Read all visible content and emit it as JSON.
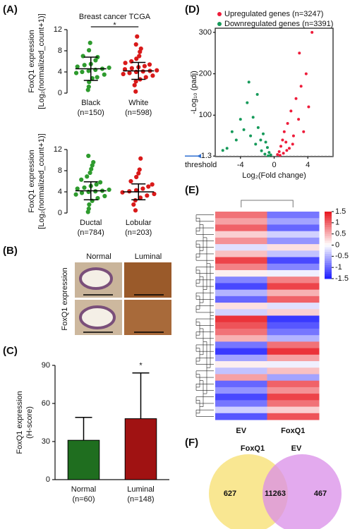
{
  "panel_labels": [
    "(A)",
    "(B)",
    "(C)",
    "(D)",
    "(E)",
    "(F)"
  ],
  "panel_b": {
    "columns": [
      "Normal",
      "Luminal"
    ],
    "row_label": "FoxQ1 expression"
  },
  "chart_data": [
    {
      "type": "strip",
      "title": "Breast cancer TCGA",
      "significance": "*",
      "ylabel": [
        "FoxQ1 expression",
        "[Log₂(normalized_count+1)]"
      ],
      "categories": [
        "Black",
        "White"
      ],
      "category_notes": [
        "(n=150)",
        "(n=598)"
      ],
      "ylim": [
        0,
        12
      ],
      "yticks": [
        0,
        4,
        8,
        12
      ],
      "series": [
        {
          "name": "Black",
          "color": "#2e9b2e",
          "mean": 4.6,
          "sd": 2.2,
          "values": [
            0.6,
            1.2,
            2.1,
            2.8,
            3.0,
            3.5,
            3.8,
            4.0,
            4.2,
            4.4,
            4.6,
            4.8,
            5.0,
            5.3,
            5.5,
            6.2,
            6.8,
            7.0,
            8.1,
            9.5
          ]
        },
        {
          "name": "White",
          "color": "#d91a1a",
          "mean": 4.2,
          "sd": 1.6,
          "values": [
            0.3,
            1.5,
            2.2,
            2.6,
            3.0,
            3.3,
            3.6,
            3.8,
            4.0,
            4.1,
            4.2,
            4.3,
            4.5,
            4.7,
            4.9,
            5.1,
            5.4,
            5.7,
            6.0,
            6.5,
            7.0,
            7.8,
            8.4,
            9.2,
            10.7
          ]
        }
      ]
    },
    {
      "type": "strip",
      "ylabel": [
        "FoxQ1 expression",
        "[Log₂(normalized_count+1)]"
      ],
      "categories": [
        "Ductal",
        "Lobular"
      ],
      "category_notes": [
        "(n=784)",
        "(n=203)"
      ],
      "ylim": [
        0,
        12
      ],
      "yticks": [
        0,
        4,
        8,
        12
      ],
      "series": [
        {
          "name": "Ductal",
          "color": "#2e9b2e",
          "mean": 4.2,
          "sd": 1.7,
          "values": [
            0.2,
            0.8,
            1.6,
            2.3,
            2.8,
            3.2,
            3.5,
            3.8,
            4.0,
            4.1,
            4.2,
            4.4,
            4.6,
            4.8,
            5.1,
            5.4,
            5.8,
            6.3,
            6.9,
            7.6,
            8.3,
            9.0,
            9.6,
            10.8
          ]
        },
        {
          "name": "Lobular",
          "color": "#d91a1a",
          "mean": 4.0,
          "sd": 1.5,
          "values": [
            0.5,
            1.6,
            2.4,
            2.9,
            3.3,
            3.6,
            3.9,
            4.1,
            4.3,
            4.6,
            5.0,
            5.4,
            6.0,
            6.8,
            7.5,
            8.2,
            10.3
          ]
        }
      ]
    },
    {
      "type": "bar",
      "significance": "*",
      "ylabel": [
        "FoxQ1 expression",
        "(H-score)"
      ],
      "categories": [
        "Normal",
        "Luminal"
      ],
      "category_notes": [
        "(n=60)",
        "(n=148)"
      ],
      "values": [
        31,
        48
      ],
      "errors": [
        18,
        36
      ],
      "colors": [
        "#1f6e1f",
        "#a01212"
      ],
      "ylim": [
        0,
        90
      ],
      "yticks": [
        0,
        30,
        60,
        90
      ]
    },
    {
      "type": "volcano",
      "xlabel": "Log₂(Fold change)",
      "ylabel": "-Log₁₀ (padj)",
      "annotation": "threshold",
      "xlim": [
        -7,
        7
      ],
      "xticks": [
        -4,
        0,
        4
      ],
      "ylim": [
        0,
        310
      ],
      "yticks": [
        1.3,
        100,
        200,
        300
      ],
      "threshold": 1.3,
      "series": [
        {
          "name": "Upregulated genes (n=3247)",
          "color": "#ee1c3a",
          "x": [
            0.4,
            0.6,
            0.8,
            1.0,
            1.2,
            1.4,
            1.6,
            1.8,
            2.0,
            2.3,
            2.6,
            2.9,
            3.2,
            3.5,
            3.8,
            4.1,
            4.5,
            1.1,
            2.2,
            3.0,
            0.7,
            1.5
          ],
          "y": [
            5,
            12,
            25,
            40,
            60,
            35,
            80,
            20,
            110,
            50,
            140,
            90,
            170,
            60,
            200,
            120,
            300,
            8,
            30,
            250,
            3,
            15
          ]
        },
        {
          "name": "Downregulated genes (n=3391)",
          "color": "#169a5a",
          "x": [
            -0.4,
            -0.6,
            -0.8,
            -1.0,
            -1.3,
            -1.6,
            -1.9,
            -2.2,
            -2.5,
            -2.8,
            -3.2,
            -3.6,
            -4.0,
            -4.5,
            -5.0,
            -5.6,
            -6.1,
            -1.1,
            -2.0,
            -3.0,
            -0.7,
            -1.5
          ],
          "y": [
            4,
            10,
            22,
            35,
            55,
            40,
            70,
            30,
            95,
            50,
            130,
            65,
            90,
            40,
            60,
            20,
            15,
            6,
            150,
            180,
            2,
            14
          ]
        }
      ]
    },
    {
      "type": "heatmap",
      "columns": [
        "EV",
        "FoxQ1"
      ],
      "zlim": [
        -1.5,
        1.5
      ],
      "zticks": [
        1.5,
        1,
        0.5,
        0,
        -0.5,
        -1,
        -1.5
      ],
      "values": [
        [
          0.9,
          -0.9
        ],
        [
          0.6,
          -0.6
        ],
        [
          1.0,
          -1.0
        ],
        [
          0.3,
          -0.3
        ],
        [
          0.7,
          -0.7
        ],
        [
          -0.2,
          0.2
        ],
        [
          0.4,
          -0.4
        ],
        [
          1.2,
          -1.2
        ],
        [
          0.8,
          -0.8
        ],
        [
          0.1,
          -0.1
        ],
        [
          -0.8,
          0.8
        ],
        [
          -1.2,
          1.2
        ],
        [
          -0.5,
          0.5
        ],
        [
          -1.0,
          1.0
        ],
        [
          0.2,
          -0.2
        ],
        [
          -0.3,
          0.3
        ],
        [
          1.3,
          -1.3
        ],
        [
          1.1,
          -1.1
        ],
        [
          0.9,
          -0.9
        ],
        [
          0.5,
          -0.5
        ],
        [
          -0.9,
          0.9
        ],
        [
          -1.3,
          1.3
        ],
        [
          -0.6,
          0.6
        ],
        [
          0.1,
          -0.1
        ],
        [
          -0.4,
          0.4
        ],
        [
          0.6,
          -0.6
        ],
        [
          -1.0,
          1.0
        ],
        [
          -0.7,
          0.7
        ],
        [
          -1.2,
          1.2
        ],
        [
          -0.9,
          0.9
        ],
        [
          -0.3,
          0.3
        ],
        [
          -1.1,
          1.1
        ]
      ]
    },
    {
      "type": "venn",
      "sets": [
        "FoxQ1",
        "EV"
      ],
      "colors": [
        "#f7df6e",
        "#d98ee8"
      ],
      "values": [
        627,
        11263,
        467
      ]
    }
  ]
}
